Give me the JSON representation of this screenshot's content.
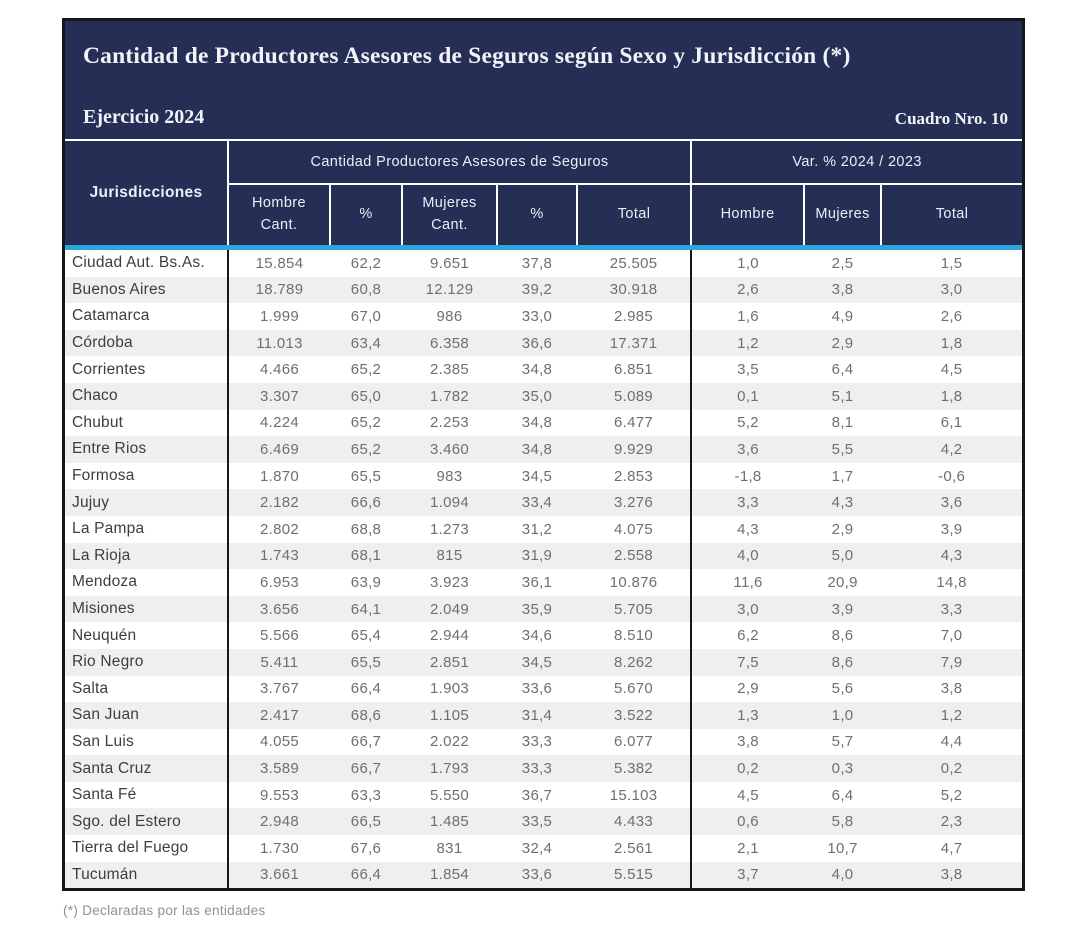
{
  "page": {
    "title": "Cantidad de Productores Asesores de Seguros según Sexo y Jurisdicción (*)",
    "exercise_label": "Ejercicio  2024",
    "cuadro_label": "Cuadro Nro. 10",
    "footnote": "(*) Declaradas por las entidades"
  },
  "colors": {
    "navy": "#252e55",
    "cyan_rule": "#2ba6db",
    "stripe": "#efefef",
    "border_black": "#16171d"
  },
  "table": {
    "corner_header": "Jurisdicciones",
    "group_headers": {
      "cantidad": "Cantidad Productores Asesores de Seguros",
      "variacion": "Var. % 2024 / 2023"
    },
    "sub_headers": {
      "cantidad": [
        "Hombre\nCant.",
        "%",
        "Mujeres\nCant.",
        "%",
        "Total"
      ],
      "variacion": [
        "Hombre",
        "Mujeres",
        "Total"
      ]
    },
    "rows": [
      {
        "jurisdiccion": "Ciudad Aut. Bs.As.",
        "values": [
          "15.854",
          "62,2",
          "9.651",
          "37,8",
          "25.505",
          "1,0",
          "2,5",
          "1,5"
        ]
      },
      {
        "jurisdiccion": "Buenos Aires",
        "values": [
          "18.789",
          "60,8",
          "12.129",
          "39,2",
          "30.918",
          "2,6",
          "3,8",
          "3,0"
        ]
      },
      {
        "jurisdiccion": "Catamarca",
        "values": [
          "1.999",
          "67,0",
          "986",
          "33,0",
          "2.985",
          "1,6",
          "4,9",
          "2,6"
        ]
      },
      {
        "jurisdiccion": "Córdoba",
        "values": [
          "11.013",
          "63,4",
          "6.358",
          "36,6",
          "17.371",
          "1,2",
          "2,9",
          "1,8"
        ]
      },
      {
        "jurisdiccion": "Corrientes",
        "values": [
          "4.466",
          "65,2",
          "2.385",
          "34,8",
          "6.851",
          "3,5",
          "6,4",
          "4,5"
        ]
      },
      {
        "jurisdiccion": "Chaco",
        "values": [
          "3.307",
          "65,0",
          "1.782",
          "35,0",
          "5.089",
          "0,1",
          "5,1",
          "1,8"
        ]
      },
      {
        "jurisdiccion": "Chubut",
        "values": [
          "4.224",
          "65,2",
          "2.253",
          "34,8",
          "6.477",
          "5,2",
          "8,1",
          "6,1"
        ]
      },
      {
        "jurisdiccion": "Entre Rios",
        "values": [
          "6.469",
          "65,2",
          "3.460",
          "34,8",
          "9.929",
          "3,6",
          "5,5",
          "4,2"
        ]
      },
      {
        "jurisdiccion": "Formosa",
        "values": [
          "1.870",
          "65,5",
          "983",
          "34,5",
          "2.853",
          "-1,8",
          "1,7",
          "-0,6"
        ]
      },
      {
        "jurisdiccion": "Jujuy",
        "values": [
          "2.182",
          "66,6",
          "1.094",
          "33,4",
          "3.276",
          "3,3",
          "4,3",
          "3,6"
        ]
      },
      {
        "jurisdiccion": "La Pampa",
        "values": [
          "2.802",
          "68,8",
          "1.273",
          "31,2",
          "4.075",
          "4,3",
          "2,9",
          "3,9"
        ]
      },
      {
        "jurisdiccion": "La Rioja",
        "values": [
          "1.743",
          "68,1",
          "815",
          "31,9",
          "2.558",
          "4,0",
          "5,0",
          "4,3"
        ]
      },
      {
        "jurisdiccion": "Mendoza",
        "values": [
          "6.953",
          "63,9",
          "3.923",
          "36,1",
          "10.876",
          "11,6",
          "20,9",
          "14,8"
        ]
      },
      {
        "jurisdiccion": "Misiones",
        "values": [
          "3.656",
          "64,1",
          "2.049",
          "35,9",
          "5.705",
          "3,0",
          "3,9",
          "3,3"
        ]
      },
      {
        "jurisdiccion": "Neuquén",
        "values": [
          "5.566",
          "65,4",
          "2.944",
          "34,6",
          "8.510",
          "6,2",
          "8,6",
          "7,0"
        ]
      },
      {
        "jurisdiccion": "Rio Negro",
        "values": [
          "5.411",
          "65,5",
          "2.851",
          "34,5",
          "8.262",
          "7,5",
          "8,6",
          "7,9"
        ]
      },
      {
        "jurisdiccion": "Salta",
        "values": [
          "3.767",
          "66,4",
          "1.903",
          "33,6",
          "5.670",
          "2,9",
          "5,6",
          "3,8"
        ]
      },
      {
        "jurisdiccion": "San Juan",
        "values": [
          "2.417",
          "68,6",
          "1.105",
          "31,4",
          "3.522",
          "1,3",
          "1,0",
          "1,2"
        ]
      },
      {
        "jurisdiccion": "San Luis",
        "values": [
          "4.055",
          "66,7",
          "2.022",
          "33,3",
          "6.077",
          "3,8",
          "5,7",
          "4,4"
        ]
      },
      {
        "jurisdiccion": "Santa Cruz",
        "values": [
          "3.589",
          "66,7",
          "1.793",
          "33,3",
          "5.382",
          "0,2",
          "0,3",
          "0,2"
        ]
      },
      {
        "jurisdiccion": "Santa Fé",
        "values": [
          "9.553",
          "63,3",
          "5.550",
          "36,7",
          "15.103",
          "4,5",
          "6,4",
          "5,2"
        ]
      },
      {
        "jurisdiccion": "Sgo. del Estero",
        "values": [
          "2.948",
          "66,5",
          "1.485",
          "33,5",
          "4.433",
          "0,6",
          "5,8",
          "2,3"
        ]
      },
      {
        "jurisdiccion": "Tierra del Fuego",
        "values": [
          "1.730",
          "67,6",
          "831",
          "32,4",
          "2.561",
          "2,1",
          "10,7",
          "4,7"
        ]
      },
      {
        "jurisdiccion": "Tucumán",
        "values": [
          "3.661",
          "66,4",
          "1.854",
          "33,6",
          "5.515",
          "3,7",
          "4,0",
          "3,8"
        ]
      }
    ]
  }
}
